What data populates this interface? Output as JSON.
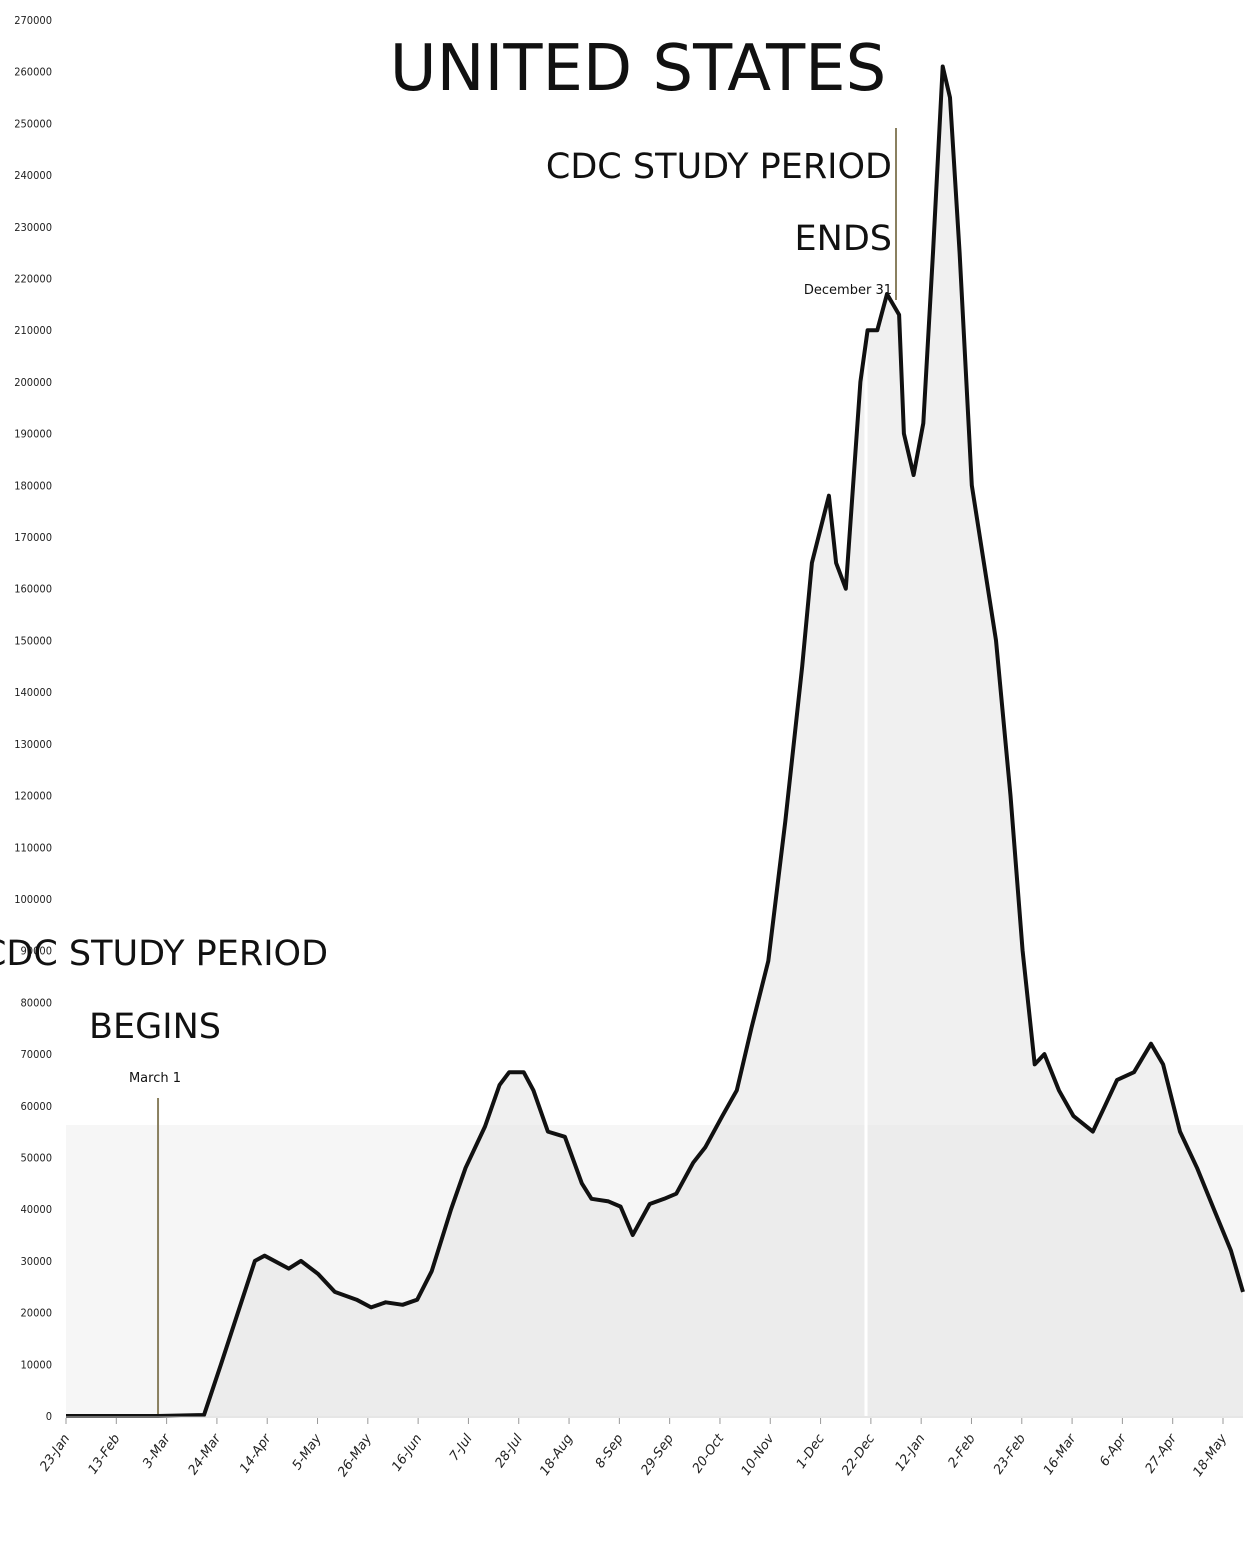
{
  "chart_data": {
    "type": "area",
    "title": "UNITED STATES",
    "xlabel": "",
    "ylabel": "",
    "ylim": [
      0,
      270000
    ],
    "y_ticks": [
      0,
      10000,
      20000,
      30000,
      40000,
      50000,
      60000,
      70000,
      80000,
      90000,
      100000,
      110000,
      120000,
      130000,
      140000,
      150000,
      160000,
      170000,
      180000,
      190000,
      200000,
      210000,
      220000,
      230000,
      240000,
      250000,
      260000,
      270000
    ],
    "x_ticks": [
      "23-Jan",
      "13-Feb",
      "3-Mar",
      "24-Mar",
      "14-Apr",
      "5-May",
      "26-May",
      "16-Jun",
      "7-Jul",
      "28-Jul",
      "18-Aug",
      "8-Sep",
      "29-Sep",
      "20-Oct",
      "10-Nov",
      "1-Dec",
      "22-Dec",
      "12-Jan",
      "2-Feb",
      "23-Feb",
      "16-Mar",
      "6-Apr",
      "27-Apr",
      "18-May"
    ],
    "x_start": "2020-01-23",
    "x_end": "2021-05-23",
    "grid": false,
    "colors": {
      "line": "#111111",
      "fill": "#e6e6e6",
      "marker": "#8a8060"
    },
    "series": [
      {
        "name": "",
        "points": [
          [
            "2020-01-23",
            0
          ],
          [
            "2020-03-01",
            0
          ],
          [
            "2020-03-20",
            200
          ],
          [
            "2020-03-27",
            10000
          ],
          [
            "2020-04-03",
            20000
          ],
          [
            "2020-04-10",
            30000
          ],
          [
            "2020-04-14",
            31000
          ],
          [
            "2020-04-24",
            28500
          ],
          [
            "2020-04-29",
            30000
          ],
          [
            "2020-05-06",
            27500
          ],
          [
            "2020-05-13",
            24000
          ],
          [
            "2020-05-22",
            22500
          ],
          [
            "2020-05-28",
            21000
          ],
          [
            "2020-06-03",
            22000
          ],
          [
            "2020-06-10",
            21500
          ],
          [
            "2020-06-16",
            22500
          ],
          [
            "2020-06-22",
            28000
          ],
          [
            "2020-06-30",
            40000
          ],
          [
            "2020-07-06",
            48000
          ],
          [
            "2020-07-14",
            56000
          ],
          [
            "2020-07-20",
            64000
          ],
          [
            "2020-07-24",
            66500
          ],
          [
            "2020-07-30",
            66500
          ],
          [
            "2020-08-03",
            63000
          ],
          [
            "2020-08-09",
            55000
          ],
          [
            "2020-08-16",
            54000
          ],
          [
            "2020-08-23",
            45000
          ],
          [
            "2020-08-27",
            42000
          ],
          [
            "2020-09-03",
            41500
          ],
          [
            "2020-09-08",
            40500
          ],
          [
            "2020-09-13",
            35000
          ],
          [
            "2020-09-20",
            41000
          ],
          [
            "2020-09-26",
            42000
          ],
          [
            "2020-10-01",
            43000
          ],
          [
            "2020-10-08",
            49000
          ],
          [
            "2020-10-13",
            52000
          ],
          [
            "2020-10-20",
            58000
          ],
          [
            "2020-10-26",
            63000
          ],
          [
            "2020-11-01",
            75000
          ],
          [
            "2020-11-08",
            88000
          ],
          [
            "2020-11-15",
            115000
          ],
          [
            "2020-11-22",
            145000
          ],
          [
            "2020-11-26",
            165000
          ],
          [
            "2020-12-03",
            178000
          ],
          [
            "2020-12-06",
            165000
          ],
          [
            "2020-12-10",
            160000
          ],
          [
            "2020-12-16",
            200000
          ],
          [
            "2020-12-19",
            210000
          ],
          [
            "2020-12-23",
            210000
          ],
          [
            "2020-12-27",
            217000
          ],
          [
            "2021-01-01",
            213000
          ],
          [
            "2021-01-03",
            190000
          ],
          [
            "2021-01-07",
            182000
          ],
          [
            "2021-01-11",
            192000
          ],
          [
            "2021-01-15",
            225000
          ],
          [
            "2021-01-19",
            261000
          ],
          [
            "2021-01-22",
            255000
          ],
          [
            "2021-01-26",
            225000
          ],
          [
            "2021-01-31",
            180000
          ],
          [
            "2021-02-05",
            165000
          ],
          [
            "2021-02-10",
            150000
          ],
          [
            "2021-02-16",
            120000
          ],
          [
            "2021-02-21",
            90000
          ],
          [
            "2021-02-26",
            68000
          ],
          [
            "2021-03-02",
            70000
          ],
          [
            "2021-03-08",
            63000
          ],
          [
            "2021-03-14",
            58000
          ],
          [
            "2021-03-22",
            55000
          ],
          [
            "2021-03-27",
            60000
          ],
          [
            "2021-04-01",
            65000
          ],
          [
            "2021-04-08",
            66500
          ],
          [
            "2021-04-15",
            72000
          ],
          [
            "2021-04-20",
            68000
          ],
          [
            "2021-04-27",
            55000
          ],
          [
            "2021-05-04",
            48000
          ],
          [
            "2021-05-11",
            40000
          ],
          [
            "2021-05-18",
            32000
          ],
          [
            "2021-05-23",
            24000
          ]
        ]
      }
    ],
    "annotations": [
      {
        "lines": [
          "CDC STUDY PERIOD",
          "BEGINS"
        ],
        "sub": "March 1",
        "date": "2020-03-01"
      },
      {
        "lines": [
          "CDC STUDY PERIOD",
          "ENDS"
        ],
        "sub": "December 31",
        "date": "2020-12-31"
      }
    ]
  }
}
